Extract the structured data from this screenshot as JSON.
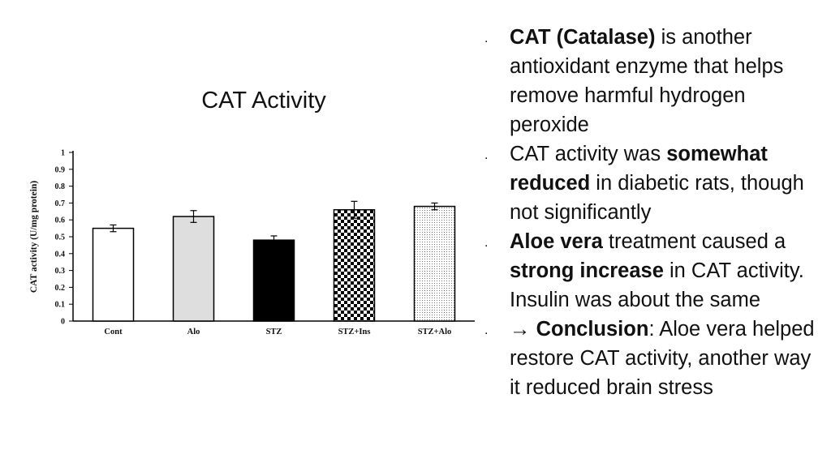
{
  "slide": {
    "title": "CAT Activity"
  },
  "bullets": [
    {
      "marker": ".",
      "parts": [
        {
          "text": "CAT (Catalase)",
          "bold": true
        },
        {
          "text": " is another antioxidant enzyme that helps remove harmful hydrogen peroxide",
          "bold": false
        }
      ]
    },
    {
      "marker": ".",
      "parts": [
        {
          "text": "CAT activity was ",
          "bold": false
        },
        {
          "text": "somewhat reduced",
          "bold": true
        },
        {
          "text": " in diabetic rats, though not significantly",
          "bold": false
        }
      ]
    },
    {
      "marker": ".",
      "parts": [
        {
          "text": "Aloe vera",
          "bold": true
        },
        {
          "text": " treatment caused a ",
          "bold": false
        },
        {
          "text": "strong increase",
          "bold": true
        },
        {
          "text": " in CAT activity. Insulin was about the same",
          "bold": false
        }
      ]
    },
    {
      "marker": ".",
      "parts": [
        {
          "text": "→ ",
          "bold": false
        },
        {
          "text": "Conclusion",
          "bold": true
        },
        {
          "text": ": Aloe vera helped restore CAT activity, another way it reduced brain stress",
          "bold": false
        }
      ]
    }
  ],
  "chart_data": {
    "type": "bar",
    "title": "",
    "xlabel": "",
    "ylabel": "CAT activity (U/mg protein)",
    "ylim": [
      0,
      1
    ],
    "yticks": [
      "0",
      "0.1",
      "0.2",
      "0.3",
      "0.4",
      "0.5",
      "0.6",
      "0.7",
      "0.8",
      "0.9",
      "1"
    ],
    "categories": [
      "Cont",
      "Alo",
      "STZ",
      "STZ+Ins",
      "STZ+Alo"
    ],
    "values": [
      0.55,
      0.62,
      0.48,
      0.66,
      0.68
    ],
    "errors": [
      0.02,
      0.035,
      0.025,
      0.05,
      0.02
    ],
    "fills": [
      "white",
      "lightgray",
      "black",
      "checkerboard",
      "dotted"
    ],
    "grid": false
  }
}
